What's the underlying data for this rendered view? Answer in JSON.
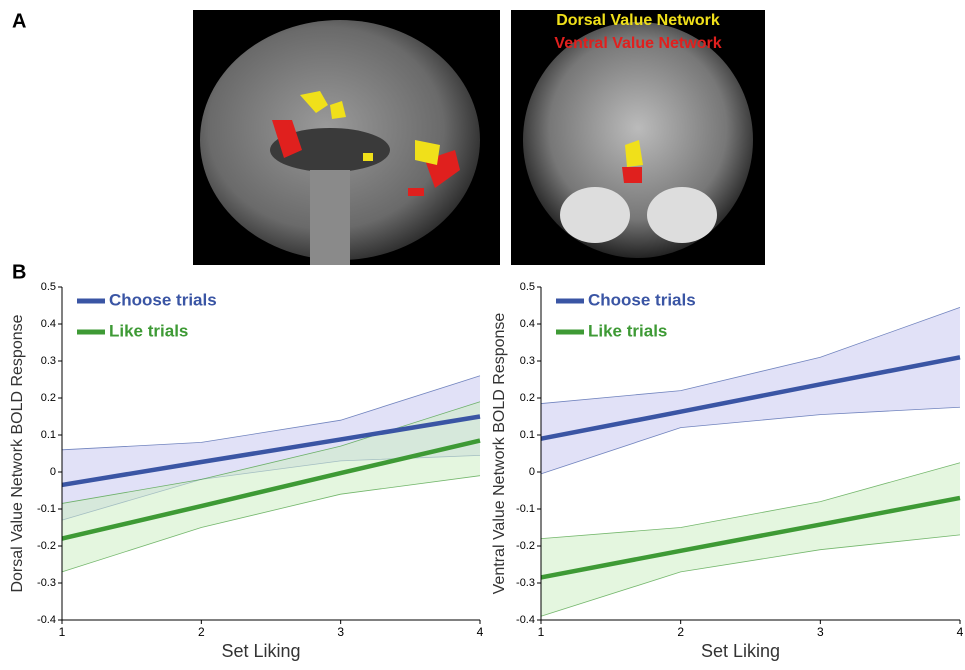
{
  "figure": {
    "panel_a": "A",
    "panel_b": "B",
    "dorsal_label": "Dorsal Value Network",
    "ventral_label": "Ventral Value Network"
  },
  "chart_data": [
    {
      "type": "line",
      "ylabel": "Dorsal Value Network BOLD Response",
      "xlabel": "Set Liking",
      "x": [
        1,
        2,
        3,
        4
      ],
      "xlim": [
        1,
        4
      ],
      "xticks": [
        1,
        2,
        3,
        4
      ],
      "ylim": [
        -0.4,
        0.5
      ],
      "yticks": [
        -0.4,
        -0.3,
        -0.2,
        -0.1,
        0,
        0.1,
        0.2,
        0.3,
        0.4,
        0.5
      ],
      "legend": "upper left",
      "series": [
        {
          "name": "Choose trials",
          "color": "#3a55a4",
          "band_color": "#c9c9f0",
          "values": [
            -0.035,
            0.027,
            0.088,
            0.15
          ],
          "lower": [
            -0.13,
            -0.02,
            0.03,
            0.045
          ],
          "upper": [
            0.06,
            0.08,
            0.14,
            0.26
          ]
        },
        {
          "name": "Like trials",
          "color": "#3e9a35",
          "band_color": "#cdeec5",
          "values": [
            -0.18,
            -0.092,
            -0.003,
            0.085
          ],
          "lower": [
            -0.27,
            -0.15,
            -0.06,
            -0.01
          ],
          "upper": [
            -0.085,
            -0.02,
            0.07,
            0.19
          ]
        }
      ]
    },
    {
      "type": "line",
      "ylabel": "Ventral Value Network BOLD Response",
      "xlabel": "Set Liking",
      "x": [
        1,
        2,
        3,
        4
      ],
      "xlim": [
        1,
        4
      ],
      "xticks": [
        1,
        2,
        3,
        4
      ],
      "ylim": [
        -0.4,
        0.5
      ],
      "yticks": [
        -0.4,
        -0.3,
        -0.2,
        -0.1,
        0,
        0.1,
        0.2,
        0.3,
        0.4,
        0.5
      ],
      "legend": "upper left",
      "series": [
        {
          "name": "Choose trials",
          "color": "#3a55a4",
          "band_color": "#c9c9f0",
          "values": [
            0.09,
            0.163,
            0.237,
            0.31
          ],
          "lower": [
            -0.005,
            0.12,
            0.155,
            0.175
          ],
          "upper": [
            0.185,
            0.22,
            0.31,
            0.445
          ]
        },
        {
          "name": "Like trials",
          "color": "#3e9a35",
          "band_color": "#cdeec5",
          "values": [
            -0.285,
            -0.213,
            -0.142,
            -0.07
          ],
          "lower": [
            -0.39,
            -0.27,
            -0.21,
            -0.17
          ],
          "upper": [
            -0.18,
            -0.15,
            -0.08,
            0.025
          ]
        }
      ]
    }
  ]
}
